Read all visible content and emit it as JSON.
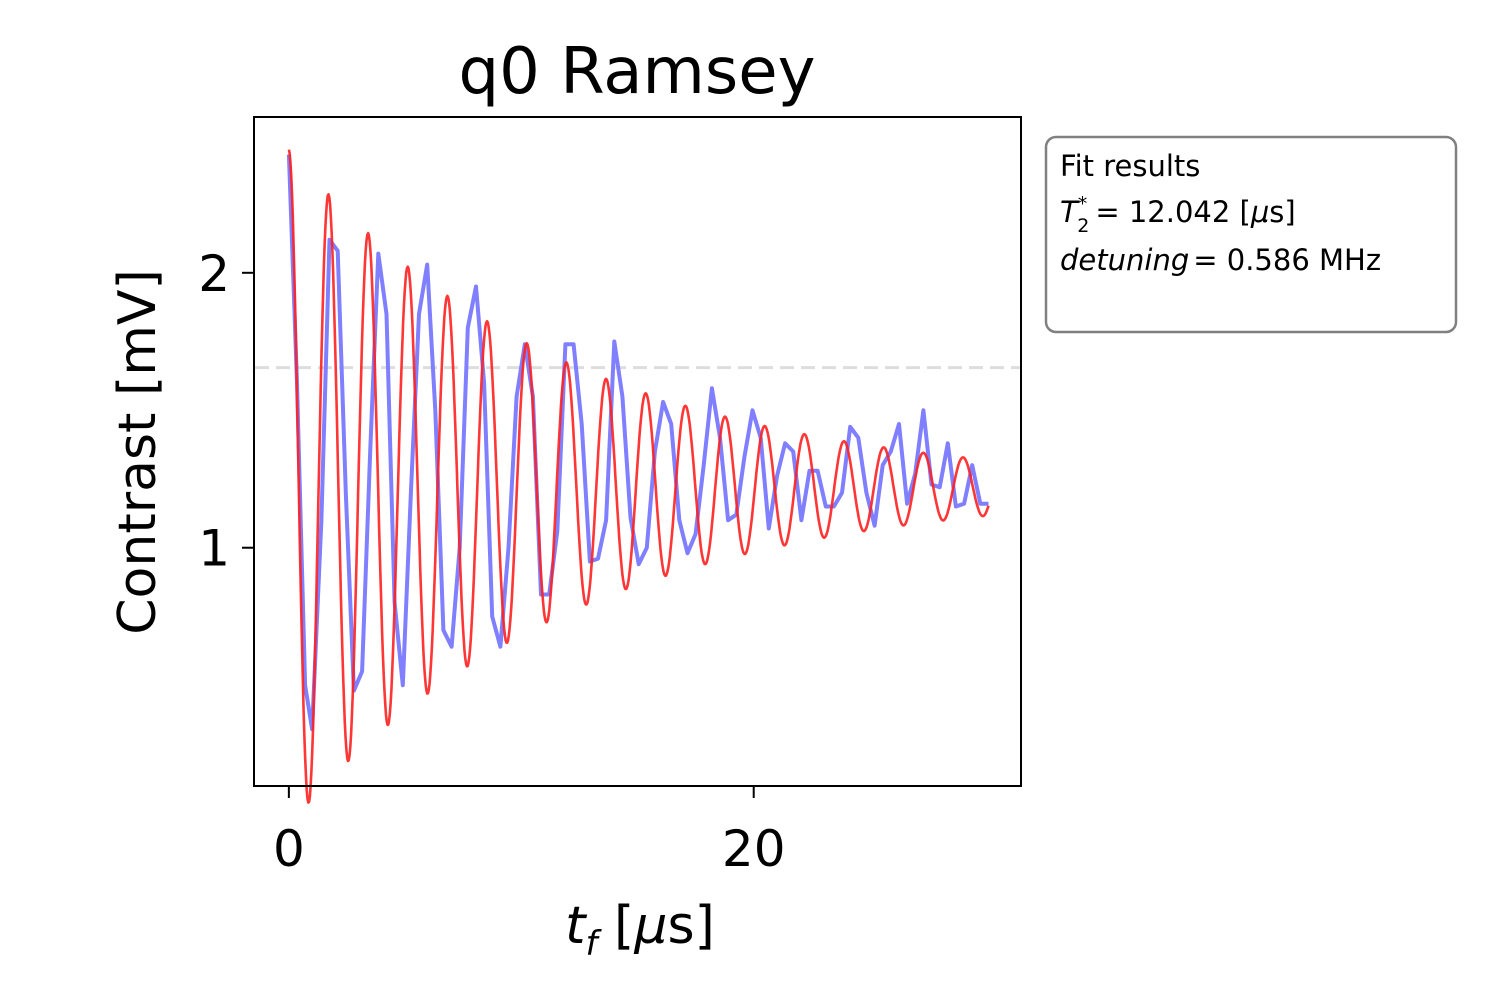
{
  "chart_data": {
    "type": "line",
    "title": "q0 Ramsey",
    "xlabel": "t_f [μs]",
    "ylabel": "Contrast [mV]",
    "xlim": [
      -1.5,
      31.5
    ],
    "ylim": [
      0.1333,
      2.5667
    ],
    "xticks": [
      0,
      20
    ],
    "yticks": [
      1,
      2
    ],
    "grid": false,
    "reference_line": {
      "y": 1.655,
      "style": "dashed",
      "color": "#dddddd"
    },
    "series": [
      {
        "role": "measured",
        "color": "#7f7fff",
        "x": [
          0,
          0.35,
          0.7,
          1.0,
          1.4,
          1.75,
          2.1,
          2.45,
          2.8,
          3.15,
          3.5,
          3.85,
          4.2,
          4.55,
          4.9,
          5.25,
          5.6,
          5.95,
          6.3,
          6.65,
          7.0,
          7.35,
          7.7,
          8.05,
          8.4,
          8.75,
          9.1,
          9.45,
          9.8,
          10.15,
          10.5,
          10.85,
          11.2,
          11.55,
          11.9,
          12.25,
          12.6,
          12.95,
          13.3,
          13.65,
          14.0,
          14.35,
          14.7,
          15.05,
          15.4,
          15.75,
          16.1,
          16.45,
          16.8,
          17.15,
          17.5,
          17.85,
          18.2,
          18.55,
          18.9,
          19.25,
          19.6,
          19.95,
          20.3,
          20.65,
          21.0,
          21.35,
          21.7,
          22.05,
          22.4,
          22.75,
          23.1,
          23.45,
          23.8,
          24.15,
          24.5,
          24.85,
          25.2,
          25.55,
          25.9,
          26.25,
          26.6,
          26.95,
          27.3,
          27.65,
          28.0,
          28.35,
          28.7,
          29.05,
          29.4,
          29.75,
          30.1
        ],
        "y": [
          2.43,
          1.6,
          0.5,
          0.34,
          1.1,
          2.12,
          2.08,
          1.2,
          0.48,
          0.55,
          1.35,
          2.07,
          1.85,
          0.8,
          0.5,
          1.2,
          1.85,
          2.03,
          1.5,
          0.7,
          0.64,
          1.0,
          1.8,
          1.95,
          1.6,
          0.75,
          0.64,
          1.0,
          1.55,
          1.74,
          1.55,
          0.83,
          0.83,
          1.06,
          1.74,
          1.74,
          1.45,
          0.95,
          0.96,
          1.1,
          1.75,
          1.55,
          1.11,
          0.94,
          1.0,
          1.35,
          1.53,
          1.45,
          1.1,
          0.98,
          1.05,
          1.3,
          1.58,
          1.4,
          1.1,
          1.12,
          1.33,
          1.5,
          1.4,
          1.07,
          1.26,
          1.38,
          1.35,
          1.1,
          1.28,
          1.28,
          1.15,
          1.15,
          1.2,
          1.44,
          1.4,
          1.2,
          1.08,
          1.3,
          1.35,
          1.45,
          1.16,
          1.27,
          1.5,
          1.23,
          1.22,
          1.38,
          1.15,
          1.16,
          1.3,
          1.16,
          1.16
        ]
      },
      {
        "role": "fit",
        "color": "#ff2020",
        "model": "decaying cosine",
        "offset": 1.218,
        "amplitude": 1.23,
        "t2_star_us": 12.042,
        "detuning_mhz": 0.586,
        "x_range": [
          0,
          30.1
        ]
      }
    ],
    "legend": {
      "placement": "outside-top-right",
      "title": "Fit results",
      "lines": [
        {
          "symbol": "T",
          "subscript": "2",
          "superscript": "*",
          "value": "= 12.042 [",
          "unit_symbol": "μ",
          "unit_rest": "s]"
        },
        {
          "name": "detuning",
          "value": "= 0.586 MHz"
        }
      ]
    }
  }
}
